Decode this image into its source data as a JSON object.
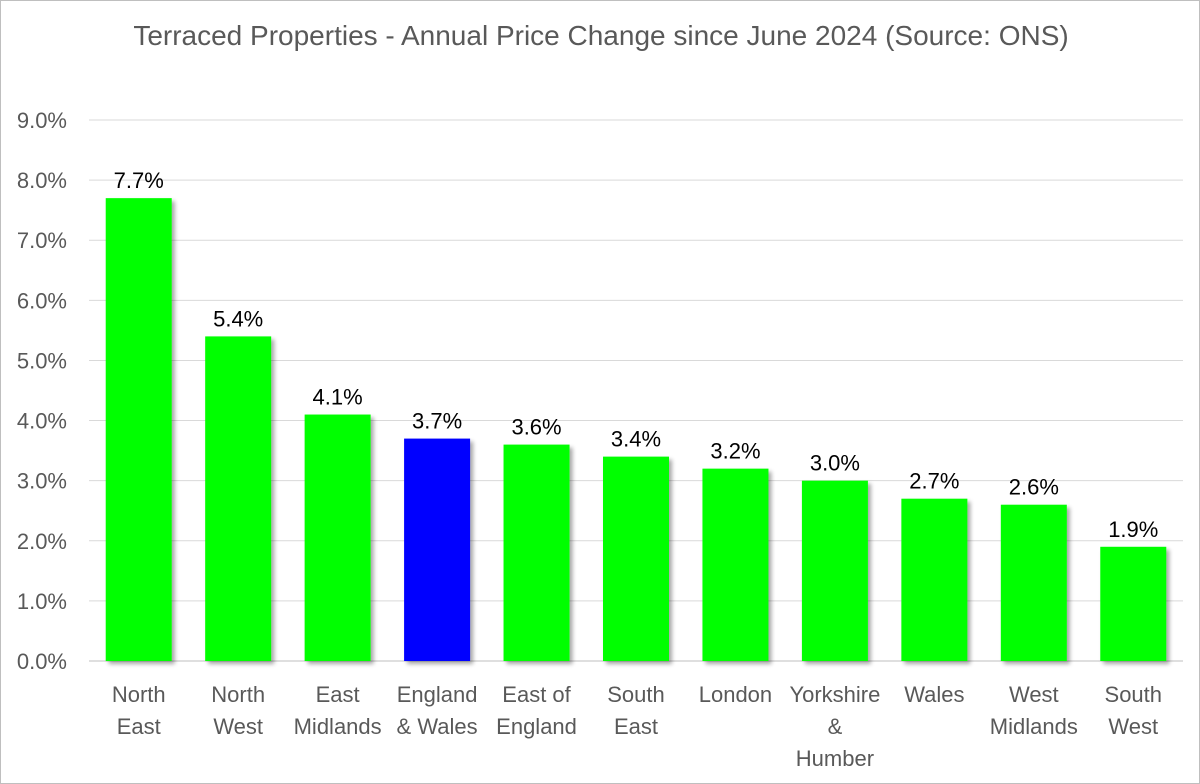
{
  "chart_data": {
    "type": "bar",
    "title": "Terraced Properties - Annual Price Change since June 2024 (Source: ONS)",
    "categories": [
      [
        "North",
        "East"
      ],
      [
        "North",
        "West"
      ],
      [
        "East",
        "Midlands"
      ],
      [
        "England",
        "& Wales"
      ],
      [
        "East of",
        "England"
      ],
      [
        "South",
        "East"
      ],
      [
        "London"
      ],
      [
        "Yorkshire",
        "&",
        "Humber"
      ],
      [
        "Wales"
      ],
      [
        "West",
        "Midlands"
      ],
      [
        "South",
        "West"
      ]
    ],
    "values": [
      7.7,
      5.4,
      4.1,
      3.7,
      3.6,
      3.4,
      3.2,
      3.0,
      2.7,
      2.6,
      1.9
    ],
    "data_labels": [
      "7.7%",
      "5.4%",
      "4.1%",
      "3.7%",
      "3.6%",
      "3.4%",
      "3.2%",
      "3.0%",
      "2.7%",
      "2.6%",
      "1.9%"
    ],
    "ylim": [
      0,
      9
    ],
    "yticks": [
      0,
      1,
      2,
      3,
      4,
      5,
      6,
      7,
      8,
      9
    ],
    "ytick_labels": [
      "0.0%",
      "1.0%",
      "2.0%",
      "3.0%",
      "4.0%",
      "5.0%",
      "6.0%",
      "7.0%",
      "8.0%",
      "9.0%"
    ],
    "grid": true,
    "bar_color": "#00ff00",
    "highlight_index": 3,
    "highlight_color": "#0000ff"
  }
}
